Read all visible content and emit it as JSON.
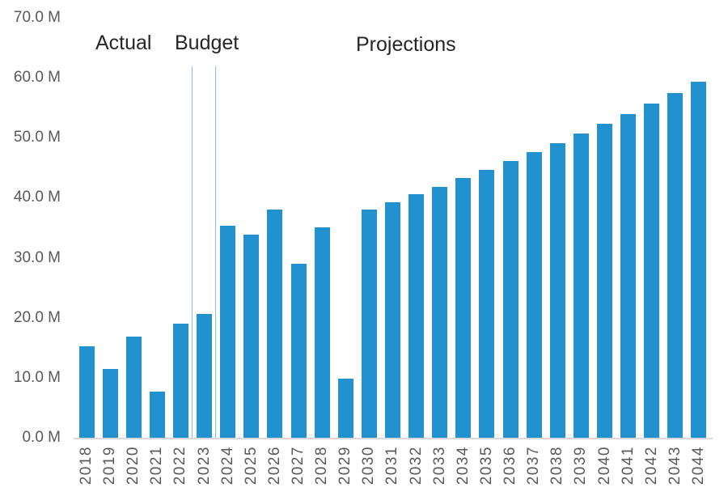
{
  "chart_data": {
    "type": "bar",
    "title": "",
    "xlabel": "",
    "ylabel": "",
    "unit": "M",
    "categories": [
      "2018",
      "2019",
      "2020",
      "2021",
      "2022",
      "2023",
      "2024",
      "2025",
      "2026",
      "2027",
      "2028",
      "2029",
      "2030",
      "2031",
      "2032",
      "2033",
      "2034",
      "2035",
      "2036",
      "2037",
      "2038",
      "2039",
      "2040",
      "2041",
      "2042",
      "2043",
      "2044"
    ],
    "values": [
      15.3,
      11.5,
      16.9,
      7.7,
      19.0,
      20.6,
      35.4,
      33.9,
      38.0,
      29.0,
      35.1,
      9.8,
      38.0,
      39.2,
      40.6,
      41.8,
      43.3,
      44.6,
      46.1,
      47.6,
      49.1,
      50.7,
      52.3,
      54.0,
      55.7,
      57.5,
      59.4
    ],
    "ylim": [
      0,
      70
    ],
    "ytick_step": 10,
    "ytick_labels": [
      "0.0 M",
      "10.0 M",
      "20.0 M",
      "30.0 M",
      "40.0 M",
      "50.0 M",
      "60.0 M",
      "70.0 M"
    ],
    "grid": false,
    "legend_position": "none",
    "sections": [
      {
        "label": "Actual",
        "from": "2018",
        "to": "2022"
      },
      {
        "label": "Budget",
        "from": "2023",
        "to": "2023"
      },
      {
        "label": "Projections",
        "from": "2024",
        "to": "2044"
      }
    ],
    "separators_after": [
      "2022",
      "2023"
    ],
    "colors": {
      "bar": "#2191d0",
      "separator_line": "#7fc0e8",
      "axis_line": "#d9d9d9",
      "tick_label": "#595959",
      "section_label": "#262626",
      "background": "#ffffff"
    }
  }
}
